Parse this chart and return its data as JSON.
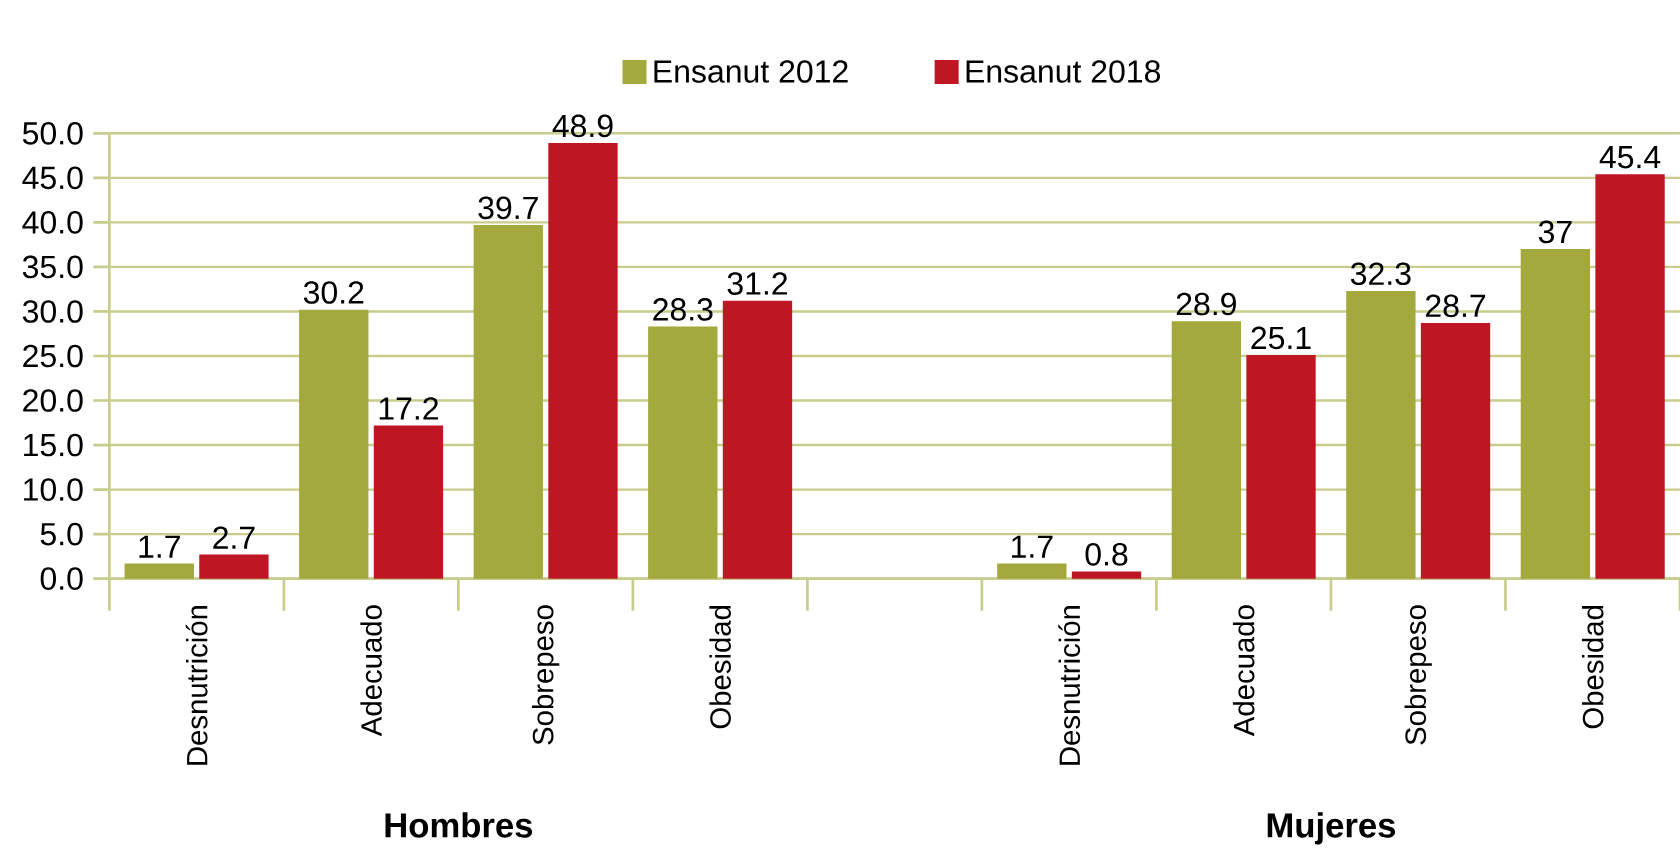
{
  "chart_data": {
    "type": "bar",
    "categories": [
      "Desnutrición",
      "Adecuado",
      "Sobrepeso",
      "Obesidad",
      null,
      "Desnutrición",
      "Adecuado",
      "Sobrepeso",
      "Obesidad"
    ],
    "series": [
      {
        "name": "Ensanut 2012",
        "color": "#a3a93d",
        "values": [
          1.7,
          30.2,
          39.7,
          28.3,
          null,
          1.7,
          28.9,
          32.3,
          37
        ],
        "value_labels": [
          "1.7",
          "30.2",
          "39.7",
          "28.3",
          null,
          "1.7",
          "28.9",
          "32.3",
          "37"
        ]
      },
      {
        "name": "Ensanut 2018",
        "color": "#be1723",
        "values": [
          2.7,
          17.2,
          48.9,
          31.2,
          null,
          0.8,
          25.1,
          28.7,
          45.4
        ],
        "value_labels": [
          "2.7",
          "17.2",
          "48.9",
          "31.2",
          null,
          "0.8",
          "25.1",
          "28.7",
          "45.4"
        ]
      }
    ],
    "ylim": [
      0,
      50
    ],
    "yticks": [
      {
        "value": 0,
        "label": "0.0"
      },
      {
        "value": 5,
        "label": "5.0"
      },
      {
        "value": 10,
        "label": "10.0"
      },
      {
        "value": 15,
        "label": "15.0"
      },
      {
        "value": 20,
        "label": "20.0"
      },
      {
        "value": 25,
        "label": "25.0"
      },
      {
        "value": 30,
        "label": "30.0"
      },
      {
        "value": 35,
        "label": "35.0"
      },
      {
        "value": 40,
        "label": "40.0"
      },
      {
        "value": 45,
        "label": "45.0"
      },
      {
        "value": 50,
        "label": "50.0"
      }
    ],
    "grid": "y",
    "legend": "top",
    "annotations": [
      "Hombres",
      "Mujeres"
    ]
  }
}
